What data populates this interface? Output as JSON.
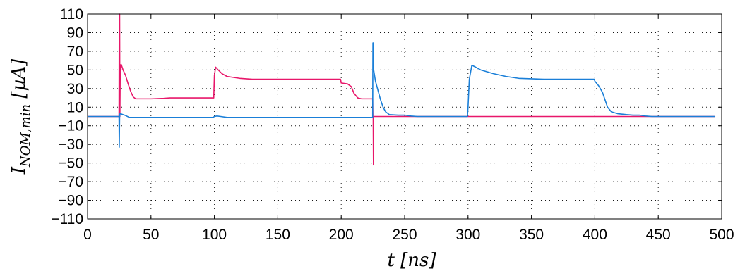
{
  "chart_data": {
    "type": "line",
    "title": "",
    "xlabel": "t [ns]",
    "ylabel": "I_{NOM,min}  [µA]",
    "xlim": [
      0,
      500
    ],
    "ylim": [
      -110,
      110
    ],
    "xticks": [
      0,
      50,
      100,
      150,
      200,
      250,
      300,
      350,
      400,
      450,
      500
    ],
    "yticks": [
      -110,
      -90,
      -70,
      -50,
      -30,
      -10,
      10,
      30,
      50,
      70,
      90,
      110
    ],
    "ytick_labels": [
      "−110",
      "−90",
      "−70",
      "−50",
      "−30",
      "−10",
      "10",
      "30",
      "50",
      "70",
      "90",
      "110"
    ],
    "grid": true,
    "series": [
      {
        "color": "#e8176a",
        "points": [
          [
            0,
            0
          ],
          [
            24.8,
            0
          ],
          [
            25,
            110
          ],
          [
            25.3,
            110
          ],
          [
            25.5,
            0
          ],
          [
            25.8,
            55
          ],
          [
            26.5,
            56
          ],
          [
            28,
            50
          ],
          [
            30,
            44
          ],
          [
            32,
            35
          ],
          [
            34,
            27
          ],
          [
            36,
            21
          ],
          [
            38,
            19
          ],
          [
            45,
            19
          ],
          [
            50,
            19
          ],
          [
            60,
            19.5
          ],
          [
            65,
            20
          ],
          [
            80,
            20
          ],
          [
            99.5,
            20
          ],
          [
            100,
            44
          ],
          [
            101,
            53
          ],
          [
            103,
            50
          ],
          [
            106,
            46
          ],
          [
            110,
            43
          ],
          [
            120,
            41
          ],
          [
            130,
            40
          ],
          [
            150,
            40
          ],
          [
            180,
            40
          ],
          [
            185,
            40
          ],
          [
            199.5,
            40
          ],
          [
            200,
            36
          ],
          [
            205,
            35
          ],
          [
            208,
            32
          ],
          [
            210,
            25
          ],
          [
            213,
            20
          ],
          [
            216,
            19
          ],
          [
            220,
            19
          ],
          [
            224.8,
            19
          ],
          [
            225,
            0
          ],
          [
            225.2,
            0
          ],
          [
            225.4,
            -52
          ],
          [
            225.6,
            0
          ],
          [
            250,
            0
          ],
          [
            300,
            0
          ],
          [
            400,
            0
          ],
          [
            495,
            0
          ]
        ]
      },
      {
        "color": "#1a7fd8",
        "points": [
          [
            0,
            0
          ],
          [
            24.8,
            0
          ],
          [
            25,
            -33
          ],
          [
            25.3,
            0
          ],
          [
            25.6,
            3
          ],
          [
            27,
            2.5
          ],
          [
            30,
            1
          ],
          [
            33,
            -1
          ],
          [
            38,
            -1
          ],
          [
            45,
            -1
          ],
          [
            60,
            -1
          ],
          [
            80,
            -1
          ],
          [
            99,
            -1
          ],
          [
            100,
            0
          ],
          [
            102,
            0.5
          ],
          [
            105,
            0
          ],
          [
            110,
            -1
          ],
          [
            150,
            -1
          ],
          [
            200,
            -1
          ],
          [
            224.5,
            -1
          ],
          [
            224.8,
            -1
          ],
          [
            225,
            79
          ],
          [
            225.3,
            79
          ],
          [
            225.6,
            50
          ],
          [
            227,
            38
          ],
          [
            229,
            28
          ],
          [
            231,
            18
          ],
          [
            233,
            10
          ],
          [
            235,
            5
          ],
          [
            238,
            2
          ],
          [
            245,
            1.5
          ],
          [
            250,
            1.5
          ],
          [
            255,
            0.5
          ],
          [
            260,
            0
          ],
          [
            299.5,
            0
          ],
          [
            300,
            10
          ],
          [
            301,
            40
          ],
          [
            303,
            55
          ],
          [
            306,
            53
          ],
          [
            310,
            50
          ],
          [
            320,
            46
          ],
          [
            330,
            43
          ],
          [
            340,
            41
          ],
          [
            350,
            40.5
          ],
          [
            360,
            40
          ],
          [
            380,
            40
          ],
          [
            399.5,
            40
          ],
          [
            400,
            38
          ],
          [
            403,
            33
          ],
          [
            406,
            26
          ],
          [
            408,
            18
          ],
          [
            410,
            10
          ],
          [
            413,
            5
          ],
          [
            418,
            3
          ],
          [
            425,
            2
          ],
          [
            430,
            1.5
          ],
          [
            435,
            1.5
          ],
          [
            440,
            0.5
          ],
          [
            445,
            0
          ],
          [
            495,
            0
          ]
        ]
      }
    ]
  }
}
